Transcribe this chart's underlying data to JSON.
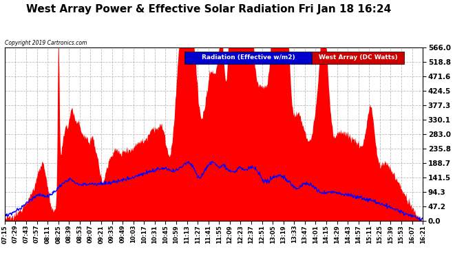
{
  "title": "West Array Power & Effective Solar Radiation Fri Jan 18 16:24",
  "copyright": "Copyright 2019 Cartronics.com",
  "legend": [
    "Radiation (Effective w/m2)",
    "West Array (DC Watts)"
  ],
  "legend_colors": [
    "#0000ff",
    "#ff0000"
  ],
  "yticks": [
    0.0,
    47.2,
    94.3,
    141.5,
    188.7,
    235.8,
    283.0,
    330.1,
    377.3,
    424.5,
    471.6,
    518.8,
    566.0
  ],
  "ymax": 566.0,
  "ymin": 0.0,
  "background_color": "#ffffff",
  "plot_background": "#ffffff",
  "grid_color": "#aaaaaa",
  "title_color": "#000000",
  "title_fontsize": 11,
  "fill_color": "#ff0000",
  "line_color": "#0000ff",
  "xtick_labels": [
    "07:15",
    "07:29",
    "07:43",
    "07:57",
    "08:11",
    "08:25",
    "08:39",
    "08:53",
    "09:07",
    "09:21",
    "09:35",
    "09:49",
    "10:03",
    "10:17",
    "10:31",
    "10:45",
    "10:59",
    "11:13",
    "11:27",
    "11:41",
    "11:55",
    "12:09",
    "12:23",
    "12:37",
    "12:51",
    "13:05",
    "13:19",
    "13:33",
    "13:47",
    "14:01",
    "14:15",
    "14:29",
    "14:43",
    "14:57",
    "15:11",
    "15:25",
    "15:39",
    "15:53",
    "16:07",
    "16:21"
  ]
}
